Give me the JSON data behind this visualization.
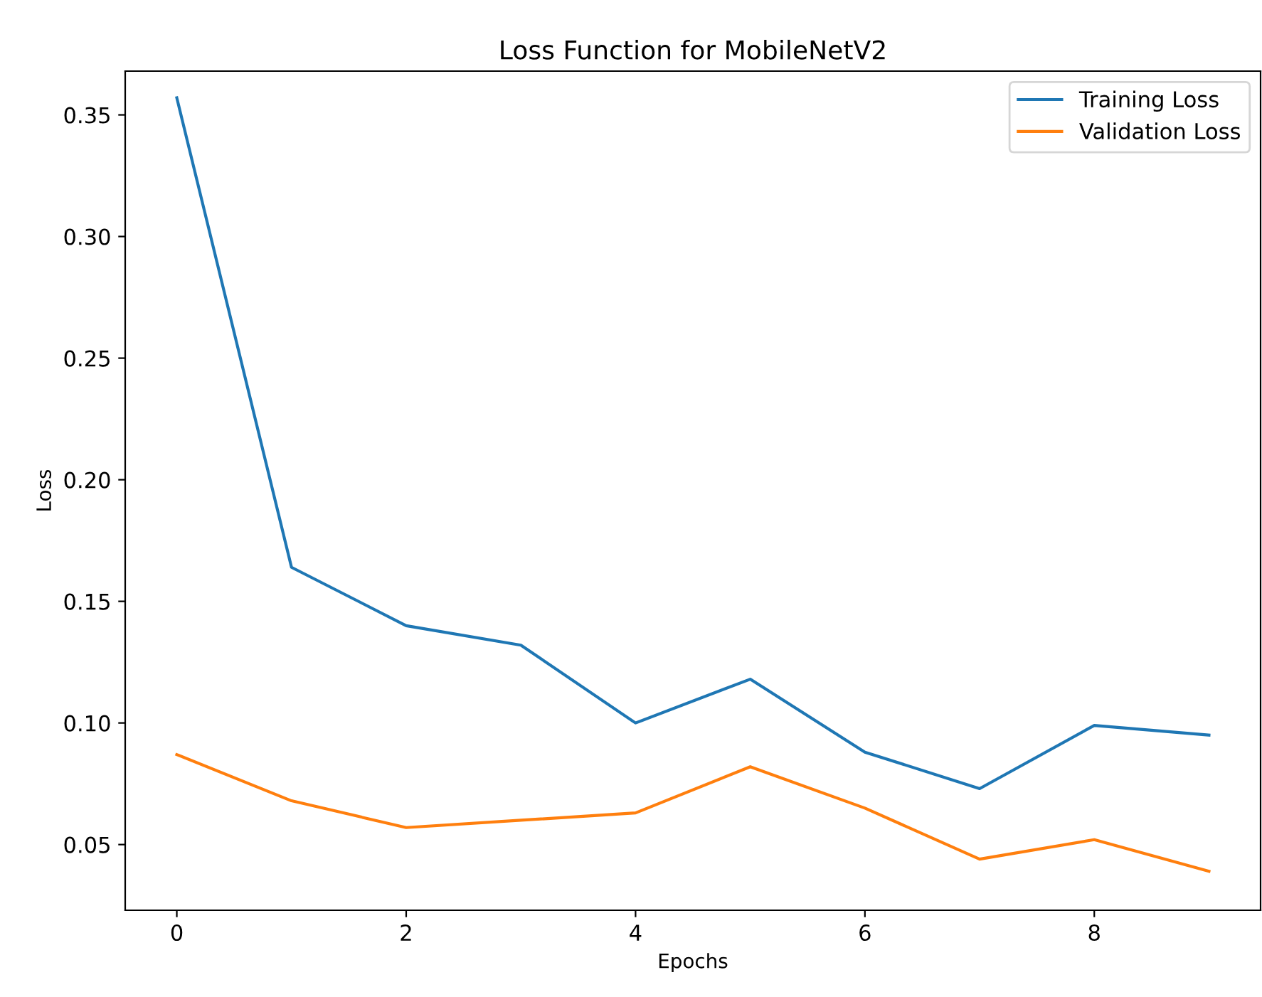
{
  "chart_data": {
    "type": "line",
    "title": "Loss Function for MobileNetV2",
    "xlabel": "Epochs",
    "ylabel": "Loss",
    "x": [
      0,
      1,
      2,
      3,
      4,
      5,
      6,
      7,
      8,
      9
    ],
    "series": [
      {
        "name": "Training Loss",
        "color": "#1f77b4",
        "values": [
          0.357,
          0.164,
          0.14,
          0.132,
          0.1,
          0.118,
          0.088,
          0.073,
          0.099,
          0.095
        ]
      },
      {
        "name": "Validation Loss",
        "color": "#ff7f0e",
        "values": [
          0.087,
          0.068,
          0.057,
          0.06,
          0.063,
          0.082,
          0.065,
          0.044,
          0.052,
          0.039
        ]
      }
    ],
    "xlim": [
      -0.45,
      9.45
    ],
    "xticks": [
      0,
      2,
      4,
      6,
      8
    ],
    "ylim": [
      0.023,
      0.368
    ],
    "yticks": [
      {
        "value": 0.05,
        "label": "0.05"
      },
      {
        "value": 0.1,
        "label": "0.10"
      },
      {
        "value": 0.15,
        "label": "0.15"
      },
      {
        "value": 0.2,
        "label": "0.20"
      },
      {
        "value": 0.25,
        "label": "0.25"
      },
      {
        "value": 0.3,
        "label": "0.30"
      },
      {
        "value": 0.35,
        "label": "0.35"
      }
    ],
    "legend": "top right",
    "grid": false
  }
}
